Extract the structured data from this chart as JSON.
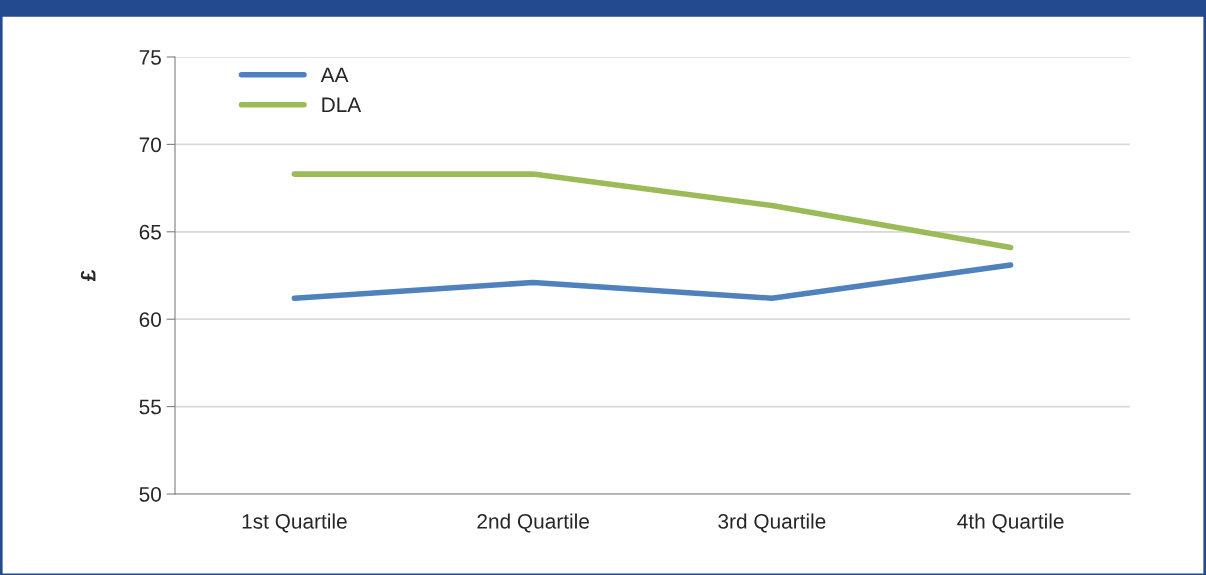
{
  "chart_data": {
    "type": "line",
    "ylabel": "£",
    "categories": [
      "1st Quartile",
      "2nd Quartile",
      "3rd Quartile",
      "4th Quartile"
    ],
    "series": [
      {
        "name": "AA",
        "color": "#4f81bd",
        "values": [
          61.2,
          62.1,
          61.2,
          63.1
        ]
      },
      {
        "name": "DLA",
        "color": "#9bbb59",
        "values": [
          68.3,
          68.3,
          66.5,
          64.1
        ]
      }
    ],
    "ylim": [
      50,
      75
    ],
    "yticks": [
      50,
      55,
      60,
      65,
      70,
      75
    ],
    "grid": "y",
    "legend": "top left",
    "marker": "none",
    "line_style": "solid"
  }
}
